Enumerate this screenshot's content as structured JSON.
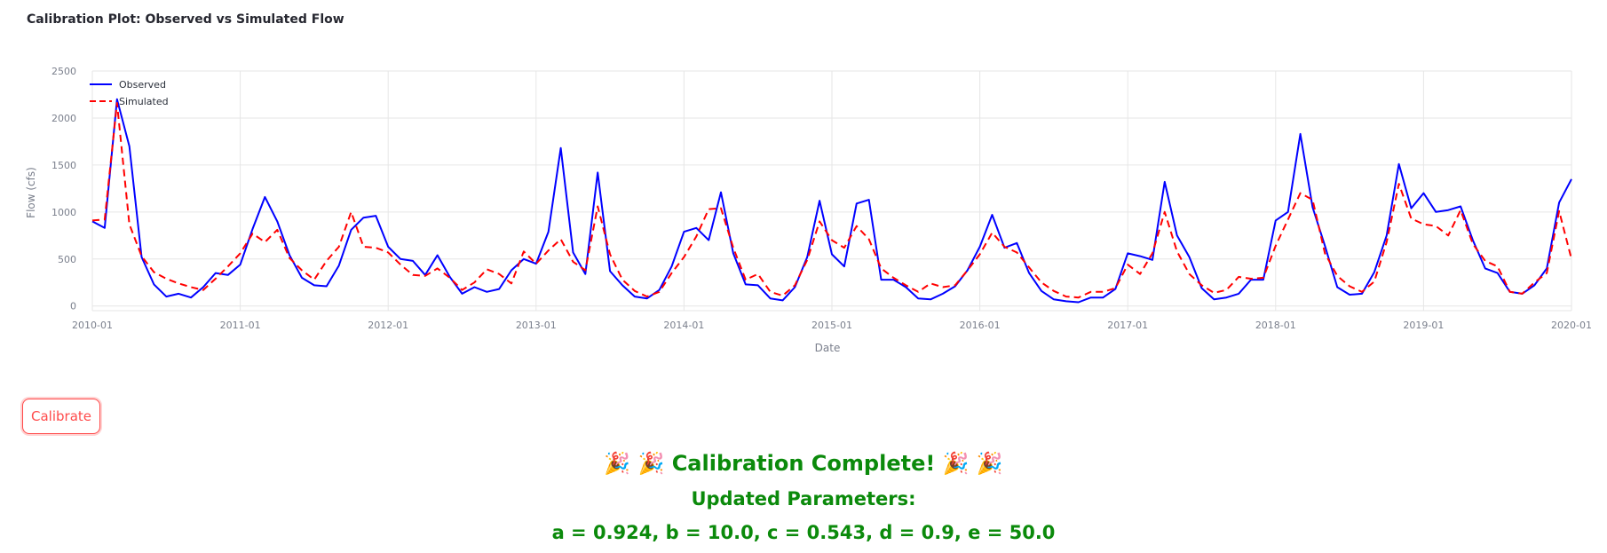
{
  "page": {
    "title": "Calibration Plot: Observed vs Simulated Flow",
    "button_label": "Calibrate",
    "message_title": "🎉 🎉 Calibration Complete! 🎉 🎉",
    "message_subtitle": "Updated Parameters:",
    "message_params": "a = 0.924, b = 10.0, c = 0.543, d = 0.9, e = 50.0"
  },
  "chart_data": {
    "type": "line",
    "title": "Calibration Plot: Observed vs Simulated Flow",
    "xlabel": "Date",
    "ylabel": "Flow (cfs)",
    "x_ticks": [
      "2010-01",
      "2011-01",
      "2012-01",
      "2013-01",
      "2014-01",
      "2015-01",
      "2016-01",
      "2017-01",
      "2018-01",
      "2019-01",
      "2020-01"
    ],
    "y_ticks": [
      0,
      500,
      1000,
      1500,
      2000,
      2500
    ],
    "xlim": [
      "2010-01",
      "2020-01"
    ],
    "ylim": [
      -50,
      2500
    ],
    "grid": true,
    "legend_position": "top-left",
    "x": [
      "2010-01",
      "2010-02",
      "2010-03",
      "2010-04",
      "2010-05",
      "2010-06",
      "2010-07",
      "2010-08",
      "2010-09",
      "2010-10",
      "2010-11",
      "2010-12",
      "2011-01",
      "2011-02",
      "2011-03",
      "2011-04",
      "2011-05",
      "2011-06",
      "2011-07",
      "2011-08",
      "2011-09",
      "2011-10",
      "2011-11",
      "2011-12",
      "2012-01",
      "2012-02",
      "2012-03",
      "2012-04",
      "2012-05",
      "2012-06",
      "2012-07",
      "2012-08",
      "2012-09",
      "2012-10",
      "2012-11",
      "2012-12",
      "2013-01",
      "2013-02",
      "2013-03",
      "2013-04",
      "2013-05",
      "2013-06",
      "2013-07",
      "2013-08",
      "2013-09",
      "2013-10",
      "2013-11",
      "2013-12",
      "2014-01",
      "2014-02",
      "2014-03",
      "2014-04",
      "2014-05",
      "2014-06",
      "2014-07",
      "2014-08",
      "2014-09",
      "2014-10",
      "2014-11",
      "2014-12",
      "2015-01",
      "2015-02",
      "2015-03",
      "2015-04",
      "2015-05",
      "2015-06",
      "2015-07",
      "2015-08",
      "2015-09",
      "2015-10",
      "2015-11",
      "2015-12",
      "2016-01",
      "2016-02",
      "2016-03",
      "2016-04",
      "2016-05",
      "2016-06",
      "2016-07",
      "2016-08",
      "2016-09",
      "2016-10",
      "2016-11",
      "2016-12",
      "2017-01",
      "2017-02",
      "2017-03",
      "2017-04",
      "2017-05",
      "2017-06",
      "2017-07",
      "2017-08",
      "2017-09",
      "2017-10",
      "2017-11",
      "2017-12",
      "2018-01",
      "2018-02",
      "2018-03",
      "2018-04",
      "2018-05",
      "2018-06",
      "2018-07",
      "2018-08",
      "2018-09",
      "2018-10",
      "2018-11",
      "2018-12",
      "2019-01",
      "2019-02",
      "2019-03",
      "2019-04",
      "2019-05",
      "2019-06",
      "2019-07",
      "2019-08",
      "2019-09",
      "2019-10",
      "2019-11",
      "2019-12",
      "2020-01"
    ],
    "series": [
      {
        "name": "Observed",
        "color": "#0000ff",
        "dash": "solid",
        "values": [
          900,
          830,
          2200,
          1700,
          520,
          230,
          100,
          130,
          90,
          200,
          350,
          330,
          440,
          820,
          1160,
          900,
          540,
          300,
          220,
          210,
          430,
          810,
          940,
          960,
          630,
          500,
          480,
          330,
          540,
          310,
          130,
          200,
          150,
          180,
          380,
          500,
          450,
          790,
          1680,
          570,
          340,
          1420,
          370,
          220,
          100,
          80,
          170,
          420,
          790,
          830,
          700,
          1210,
          560,
          230,
          220,
          80,
          60,
          200,
          520,
          1120,
          550,
          420,
          1090,
          1130,
          280,
          280,
          200,
          80,
          70,
          130,
          210,
          380,
          630,
          970,
          620,
          670,
          350,
          160,
          70,
          50,
          40,
          90,
          90,
          180,
          560,
          530,
          490,
          1320,
          750,
          520,
          190,
          70,
          90,
          130,
          280,
          280,
          910,
          1000,
          1830,
          1050,
          640,
          200,
          120,
          130,
          360,
          750,
          1510,
          1040,
          1200,
          1000,
          1020,
          1060,
          700,
          400,
          350,
          150,
          130,
          220,
          400,
          1100,
          1350
        ]
      },
      {
        "name": "Simulated",
        "color": "#ff0000",
        "dash": "dash",
        "values": [
          910,
          920,
          2160,
          870,
          530,
          360,
          290,
          240,
          200,
          170,
          290,
          420,
          560,
          770,
          680,
          810,
          510,
          380,
          280,
          480,
          630,
          1000,
          630,
          620,
          570,
          440,
          330,
          320,
          400,
          300,
          170,
          250,
          390,
          340,
          240,
          580,
          450,
          590,
          710,
          470,
          380,
          1060,
          550,
          280,
          160,
          100,
          150,
          350,
          520,
          740,
          1030,
          1040,
          620,
          280,
          340,
          150,
          110,
          220,
          490,
          900,
          700,
          620,
          850,
          710,
          400,
          300,
          220,
          150,
          240,
          200,
          220,
          380,
          550,
          780,
          630,
          570,
          410,
          250,
          160,
          100,
          90,
          150,
          150,
          190,
          440,
          340,
          560,
          1000,
          580,
          340,
          220,
          140,
          170,
          310,
          290,
          300,
          640,
          920,
          1200,
          1130,
          560,
          320,
          210,
          150,
          260,
          680,
          1300,
          930,
          870,
          850,
          750,
          1020,
          660,
          480,
          420,
          150,
          130,
          250,
          350,
          1010,
          500
        ]
      }
    ]
  }
}
